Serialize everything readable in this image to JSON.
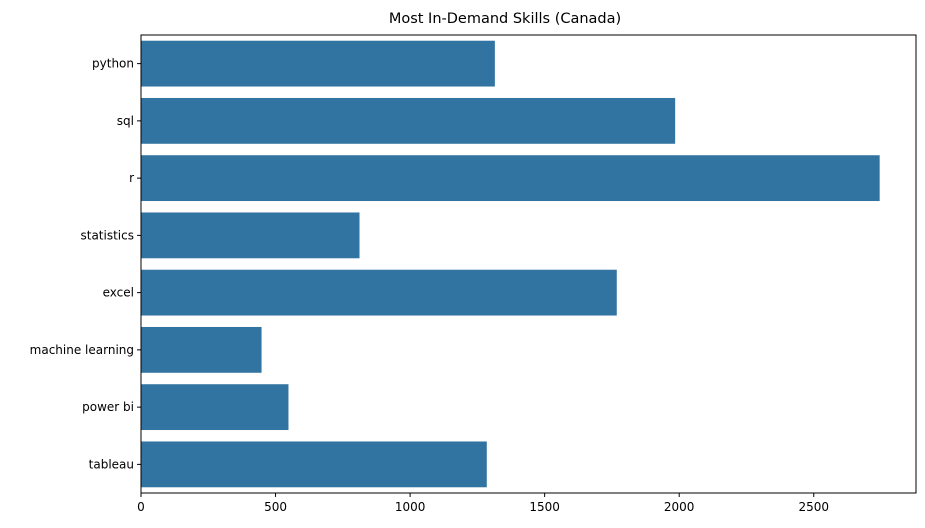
{
  "chart_data": {
    "type": "bar",
    "orientation": "horizontal",
    "title": "Most In-Demand Skills (Canada)",
    "xlabel": "",
    "ylabel": "",
    "categories": [
      "python",
      "sql",
      "r",
      "statistics",
      "excel",
      "machine learning",
      "power bi",
      "tableau"
    ],
    "values": [
      1315,
      1985,
      2745,
      812,
      1768,
      448,
      548,
      1285
    ],
    "xlim": [
      0,
      2880
    ],
    "xticks": [
      0,
      500,
      1000,
      1500,
      2000,
      2500
    ],
    "grid": false,
    "legend": "none",
    "bar_color": "#3274a1"
  }
}
